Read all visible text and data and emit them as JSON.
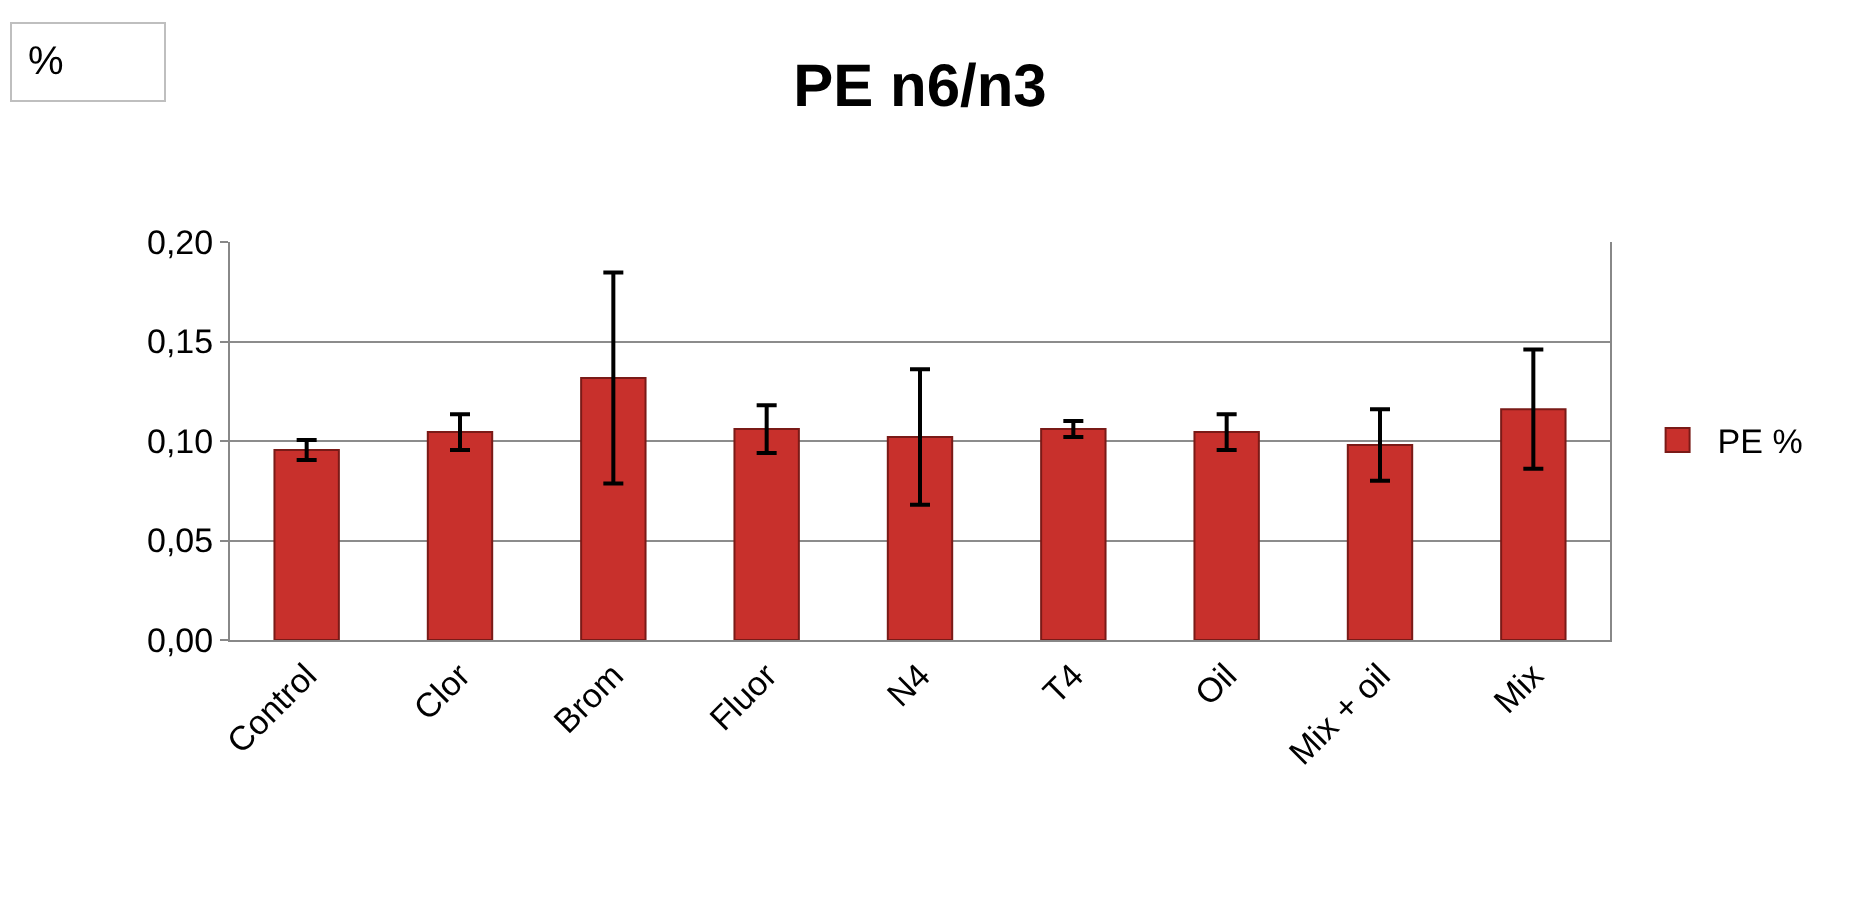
{
  "chart_data": {
    "type": "bar",
    "title": "PE n6/n3",
    "categories": [
      "Control",
      "Clor",
      "Brom",
      "Fluor",
      "N4",
      "T4",
      "Oil",
      "Mix + oil",
      "Mix"
    ],
    "series": [
      {
        "name": "PE %",
        "color": "#c8302c",
        "values": [
          0.0955,
          0.1045,
          0.1317,
          0.106,
          0.102,
          0.106,
          0.1045,
          0.098,
          0.116
        ],
        "errors": [
          0.005,
          0.009,
          0.053,
          0.012,
          0.034,
          0.004,
          0.009,
          0.018,
          0.03
        ]
      }
    ],
    "annotations": [
      "%"
    ],
    "ylim": [
      0,
      0.2
    ],
    "yticks": [
      {
        "value": 0,
        "label": "0,00"
      },
      {
        "value": 0.05,
        "label": "0,05"
      },
      {
        "value": 0.1,
        "label": "0,10"
      },
      {
        "value": 0.15,
        "label": "0,15"
      },
      {
        "value": 0.2,
        "label": "0,20"
      }
    ],
    "grid": "y",
    "legend": "right"
  }
}
